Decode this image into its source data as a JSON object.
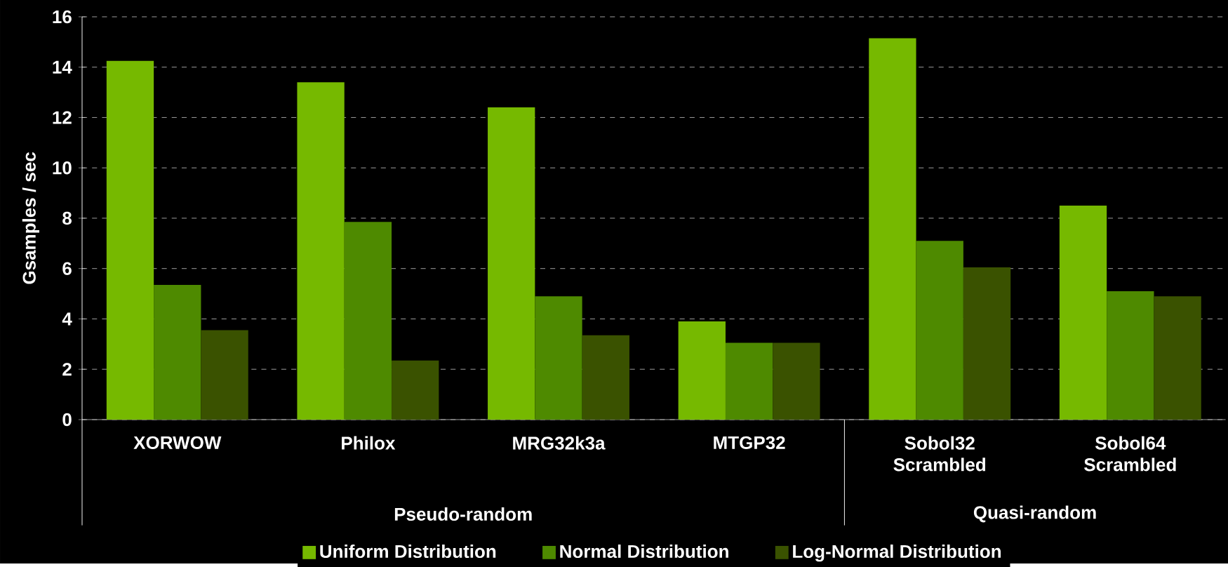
{
  "chart_data": {
    "type": "bar",
    "ylabel": "Gsamples / sec",
    "categories": [
      "XORWOW",
      "Philox",
      "MRG32k3a",
      "MTGP32",
      "Sobol32 Scrambled",
      "Sobol64 Scrambled"
    ],
    "series": [
      {
        "name": "Uniform Distribution",
        "color": "#76b900",
        "values": [
          14.25,
          13.4,
          12.4,
          3.9,
          15.15,
          8.5
        ]
      },
      {
        "name": "Normal Distribution",
        "color": "#4e8a00",
        "values": [
          5.35,
          7.85,
          4.9,
          3.05,
          7.1,
          5.1
        ]
      },
      {
        "name": "Log-Normal Distribution",
        "color": "#3a5200",
        "values": [
          3.55,
          2.35,
          3.35,
          3.05,
          6.05,
          4.9
        ]
      }
    ],
    "annotations": [
      "Pseudo-random",
      "Quasi-random"
    ],
    "ylim": [
      0,
      16
    ],
    "yticks": [
      0,
      2,
      4,
      6,
      8,
      10,
      12,
      14,
      16
    ],
    "grid": "y",
    "legend": "bottom"
  }
}
